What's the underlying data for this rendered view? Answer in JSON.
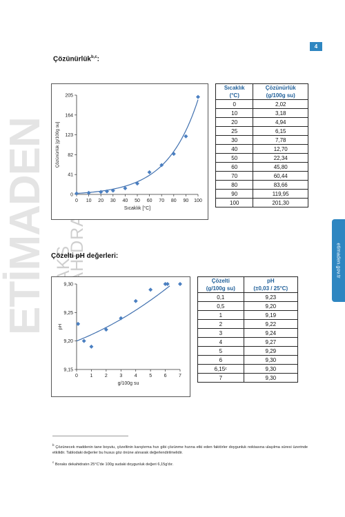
{
  "page_number": "4",
  "side_tab": "etimaden.gov.tr",
  "watermark": {
    "brand": "ETİMADEN",
    "line1": "BORAKS",
    "line2": "DEKAHİDRAT"
  },
  "solubility": {
    "heading": "Çözünürlük",
    "heading_sup": "b,c",
    "table": {
      "headers": [
        [
          "Sıcaklık",
          "(°C)"
        ],
        [
          "Çözünürlük",
          "(g/100g su)"
        ]
      ],
      "rows": [
        [
          "0",
          "2,02"
        ],
        [
          "10",
          "3,18"
        ],
        [
          "20",
          "4,94"
        ],
        [
          "25",
          "6,15"
        ],
        [
          "30",
          "7,78"
        ],
        [
          "40",
          "12,70"
        ],
        [
          "50",
          "22,34"
        ],
        [
          "60",
          "45,80"
        ],
        [
          "70",
          "60,44"
        ],
        [
          "80",
          "83,66"
        ],
        [
          "90",
          "119,95"
        ],
        [
          "100",
          "201,30"
        ]
      ]
    }
  },
  "ph": {
    "heading": "Çözelti pH değerleri:",
    "table": {
      "headers": [
        [
          "Çözelti",
          "(g/100g su)"
        ],
        [
          "pH",
          "(±0,03 / 25°C)"
        ]
      ],
      "rows": [
        [
          "0,1",
          "9,23"
        ],
        [
          "0,5",
          "9,20"
        ],
        [
          "1",
          "9,19"
        ],
        [
          "2",
          "9,22"
        ],
        [
          "3",
          "9,24"
        ],
        [
          "4",
          "9,27"
        ],
        [
          "5",
          "9,29"
        ],
        [
          "6",
          "9,30"
        ],
        [
          "6,15ᶜ",
          "9,30"
        ],
        [
          "7",
          "9,30"
        ]
      ]
    }
  },
  "chart_data": [
    {
      "type": "scatter",
      "title": "",
      "xlabel": "Sıcaklık [°C]",
      "ylabel": "Çözünürlük [g/100g su]",
      "xlim": [
        0,
        100
      ],
      "ylim": [
        0,
        205
      ],
      "xticks": [
        "0",
        "10",
        "20",
        "30",
        "40",
        "50",
        "60",
        "70",
        "80",
        "90",
        "100"
      ],
      "yticks": [
        "0",
        "41",
        "82",
        "123",
        "164",
        "205"
      ],
      "series": [
        {
          "x": [
            0,
            10,
            20,
            25,
            30,
            40,
            50,
            60,
            70,
            80,
            90,
            100
          ],
          "y": [
            2.02,
            3.18,
            4.94,
            6.15,
            7.78,
            12.7,
            22.34,
            45.8,
            60.44,
            83.66,
            119.95,
            201.3
          ]
        }
      ],
      "trendline": "exponential",
      "marker_color": "#4a7fc1"
    },
    {
      "type": "scatter",
      "title": "",
      "xlabel": "g/100g su",
      "ylabel": "pH",
      "xlim": [
        0,
        7
      ],
      "ylim": [
        9.15,
        9.3
      ],
      "xticks": [
        "0",
        "1",
        "2",
        "3",
        "4",
        "5",
        "6",
        "7"
      ],
      "yticks": [
        "9,15",
        "9,20",
        "9,25",
        "9,30"
      ],
      "series": [
        {
          "x": [
            0.1,
            0.5,
            1,
            2,
            3,
            4,
            5,
            6,
            6.15,
            7
          ],
          "y": [
            9.23,
            9.2,
            9.19,
            9.22,
            9.24,
            9.27,
            9.29,
            9.3,
            9.3,
            9.3
          ]
        }
      ],
      "trendline": "polynomial",
      "marker_color": "#4a7fc1"
    }
  ],
  "footnotes": {
    "b_mark": "b",
    "b": "Çözünecek maddenin tane boyutu, çözeltinin karıştırma hızı gibi çözünme hızına etki eden faktörler doygunluk noktasına ulaşılma süresi üzerinde etkilidir. Tablodaki değerler bu husus göz önüne alınarak değerlendirilmelidir.",
    "c_mark": "c",
    "c": "Boraks dekahidratın 25°C'de 100g sudaki doygunluk değeri 6,15g'dır."
  }
}
